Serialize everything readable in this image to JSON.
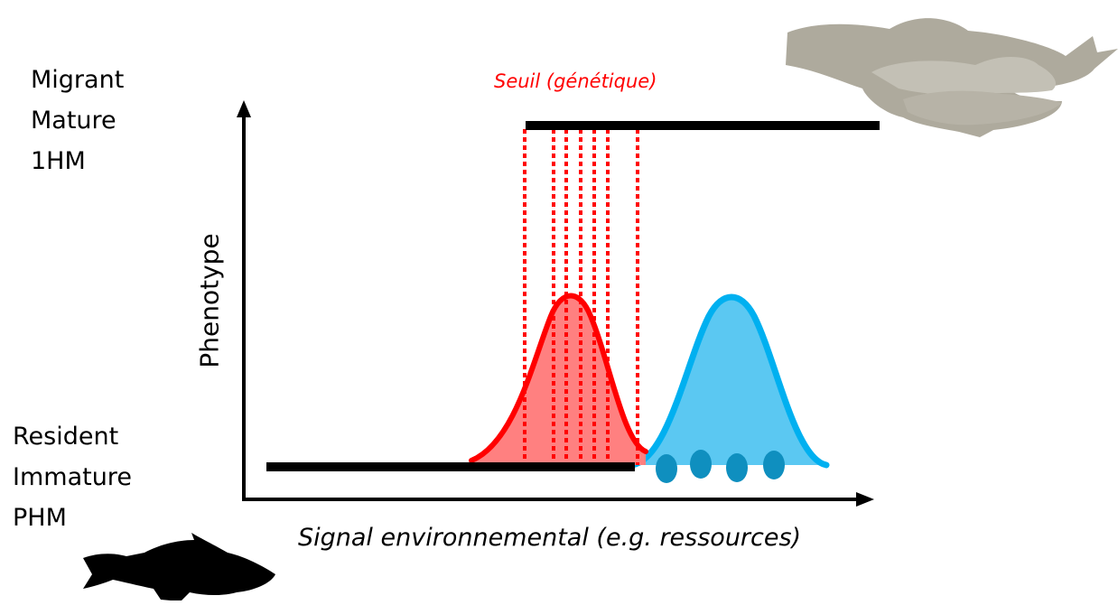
{
  "labels": {
    "top_states": [
      "Migrant",
      "Mature",
      "1HM"
    ],
    "bottom_states": [
      "Resident",
      "Immature",
      "PHM"
    ],
    "threshold": "Seuil (génétique)",
    "y_axis": "Phenotype",
    "x_axis": "Signal environnemental (e.g. ressources)"
  },
  "colors": {
    "threshold_red": "#ff0000",
    "red_fill": "#ff8080",
    "blue_line": "#00b0f0",
    "blue_fill": "#5bc8f2",
    "dots": "#0f8fbf",
    "axis": "#000000",
    "fish_top": "#aeaa9d",
    "fish_bottom": "#000000"
  },
  "icons": {
    "top": "adult-trout-group-silhouette",
    "bottom": "juvenile-trout-silhouette"
  }
}
